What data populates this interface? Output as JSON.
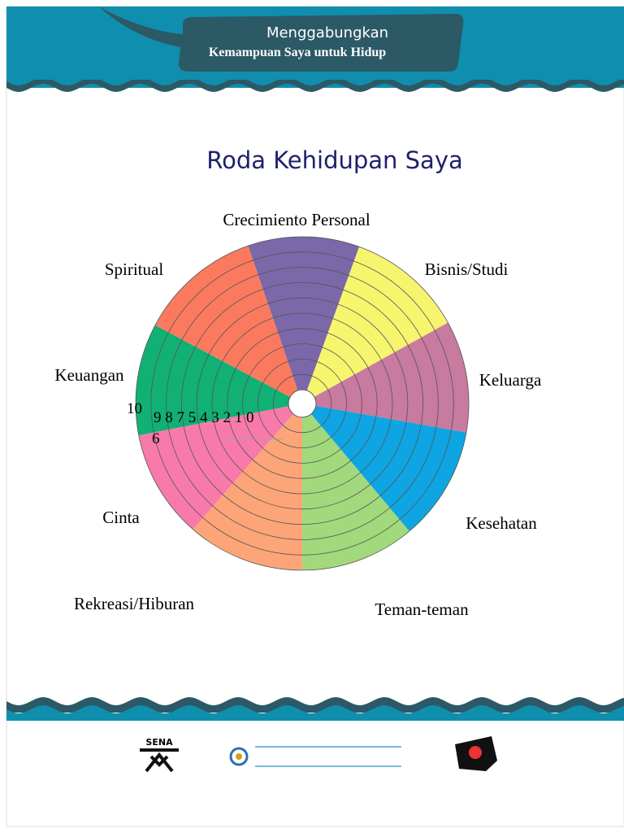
{
  "header": {
    "line1": "Menggabungkan",
    "line2": "Kemampuan Saya untuk Hidup"
  },
  "title": "Roda Kehidupan Saya",
  "wheel": {
    "areas": [
      {
        "label": "Crecimiento Personal",
        "color": "#7b68a8"
      },
      {
        "label": "Bisnis/Studi",
        "color": "#f7f56e"
      },
      {
        "label": "Keluarga",
        "color": "#c87a9f"
      },
      {
        "label": "Kesehatan",
        "color": "#0ea5e2"
      },
      {
        "label": "Teman-teman",
        "color": "#a1d97c"
      },
      {
        "label": "Rekreasi/Hiburan",
        "color": "#fda578"
      },
      {
        "label": "Cinta",
        "color": "#f77aaa"
      },
      {
        "label": "Keuangan",
        "color": "#11b074"
      },
      {
        "label": "Spiritual",
        "color": "#fb7a5e"
      }
    ],
    "scale": [
      "10",
      "9 8 7 5 4 3 2 1 0",
      "6"
    ]
  },
  "footer": {
    "logo": "SENA"
  }
}
